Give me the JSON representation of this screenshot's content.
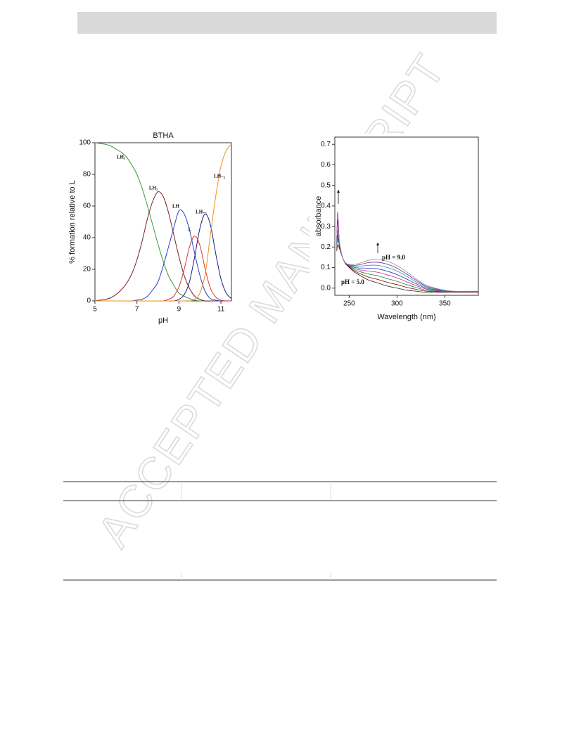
{
  "watermark": "ACCEPTED MANUSCRIPT",
  "chart_data": [
    {
      "type": "line",
      "title": "BTHA",
      "x_label": "pH",
      "y_label": "% formation relative to L",
      "x": [
        5,
        5.25,
        5.5,
        5.75,
        6,
        6.25,
        6.5,
        6.75,
        7,
        7.25,
        7.5,
        7.75,
        8,
        8.25,
        8.5,
        8.75,
        9,
        9.25,
        9.5,
        9.75,
        10,
        10.25,
        10.5,
        10.75,
        11,
        11.25,
        11.5
      ],
      "xlim": [
        5,
        11.5
      ],
      "xticks": [
        5,
        7,
        9,
        11
      ],
      "ylim": [
        0,
        100
      ],
      "yticks": [
        0,
        20,
        40,
        60,
        80,
        100
      ],
      "series": [
        {
          "name": "LH₃",
          "color": "#3a9a3a",
          "values": [
            100,
            99.5,
            99,
            98,
            96,
            94,
            91,
            86,
            80,
            71,
            60,
            48,
            36,
            25,
            16,
            10,
            5,
            3,
            1.5,
            0.5,
            0,
            0,
            0,
            0,
            0,
            0,
            0
          ]
        },
        {
          "name": "LH₂",
          "color": "#7a1f1f",
          "values": [
            0,
            0.5,
            1,
            2,
            4,
            7,
            11,
            17,
            26,
            38,
            52,
            63,
            69,
            66,
            56,
            42,
            28,
            16,
            8,
            3,
            1,
            0,
            0,
            0,
            0,
            0,
            0
          ]
        },
        {
          "name": "LH",
          "color": "#2a3fcf",
          "values": [
            0,
            0,
            0,
            0,
            0,
            0,
            0,
            0,
            0.5,
            1,
            3,
            7,
            12,
            22,
            34,
            46,
            57,
            55,
            45,
            30,
            16,
            6,
            1.5,
            0.5,
            0,
            0,
            0
          ]
        },
        {
          "name": "L",
          "color": "#e03030",
          "values": [
            0,
            0,
            0,
            0,
            0,
            0,
            0,
            0,
            0,
            0,
            0,
            0,
            0,
            0,
            1,
            3,
            9,
            20,
            34,
            41,
            35,
            20,
            8,
            2.5,
            0.5,
            0,
            0
          ]
        },
        {
          "name": "LH₋₁",
          "color": "#1a1a8a",
          "values": [
            0,
            0,
            0,
            0,
            0,
            0,
            0,
            0,
            0,
            0,
            0,
            0,
            0,
            0,
            0,
            0,
            1,
            4,
            12,
            28,
            46,
            55,
            48,
            30,
            14,
            5,
            1.5
          ]
        },
        {
          "name": "LH₋₂",
          "color": "#f0901a",
          "values": [
            0,
            0,
            0,
            0,
            0,
            0,
            0,
            0,
            0,
            0,
            0,
            0,
            0,
            0,
            0,
            0,
            0,
            0,
            0,
            1,
            5,
            17,
            42,
            66,
            85,
            95,
            99
          ]
        }
      ]
    },
    {
      "type": "line",
      "x_label": "Wavelength (nm)",
      "y_label": "absorbance",
      "annotations": [
        "pH = 9.0",
        "pH = 5.0"
      ],
      "x": [
        237,
        238,
        240,
        243,
        246,
        250,
        255,
        260,
        270,
        280,
        290,
        300,
        310,
        320,
        330,
        340,
        350,
        360,
        385
      ],
      "xlim": [
        235,
        385
      ],
      "xticks": [
        250,
        300,
        350
      ],
      "ylim": [
        -0.035,
        0.735
      ],
      "yticks": [
        {
          "value": 0,
          "label": "0.0"
        },
        {
          "value": 0.1,
          "label": "0.1"
        },
        {
          "value": 0.2,
          "label": "0.2"
        },
        {
          "value": 0.3,
          "label": "0.3"
        },
        {
          "value": 0.4,
          "label": "0.4"
        },
        {
          "value": 0.5,
          "label": "0.5"
        },
        {
          "value": 0.6,
          "label": "0.6"
        },
        {
          "value": 0.7,
          "label": "0.7"
        }
      ],
      "series": [
        {
          "color": "#222222",
          "values": [
            0.18,
            0.21,
            0.19,
            0.15,
            0.12,
            0.1,
            0.08,
            0.065,
            0.04,
            0.025,
            0.01,
            0.0,
            -0.01,
            -0.015,
            -0.02,
            -0.02,
            -0.02,
            -0.02,
            -0.02
          ]
        },
        {
          "color": "#8b0000",
          "values": [
            0.19,
            0.26,
            0.195,
            0.15,
            0.121,
            0.102,
            0.085,
            0.073,
            0.054,
            0.042,
            0.028,
            0.017,
            0.004,
            -0.006,
            -0.015,
            -0.017,
            -0.019,
            -0.019,
            -0.019
          ]
        },
        {
          "color": "#1a8a1a",
          "values": [
            0.2,
            0.24,
            0.199,
            0.15,
            0.122,
            0.105,
            0.091,
            0.082,
            0.069,
            0.06,
            0.046,
            0.033,
            0.017,
            0.003,
            -0.01,
            -0.014,
            -0.017,
            -0.018,
            -0.018
          ]
        },
        {
          "color": "#d11fa0",
          "values": [
            0.21,
            0.37,
            0.204,
            0.15,
            0.122,
            0.107,
            0.096,
            0.09,
            0.083,
            0.077,
            0.064,
            0.05,
            0.031,
            0.012,
            -0.004,
            -0.011,
            -0.016,
            -0.018,
            -0.018
          ]
        },
        {
          "color": "#1f3fbf",
          "values": [
            0.22,
            0.28,
            0.208,
            0.15,
            0.123,
            0.109,
            0.101,
            0.098,
            0.097,
            0.094,
            0.082,
            0.066,
            0.044,
            0.021,
            0.001,
            -0.008,
            -0.014,
            -0.017,
            -0.017
          ]
        },
        {
          "color": "#1a9a9a",
          "values": [
            0.23,
            0.23,
            0.213,
            0.15,
            0.124,
            0.111,
            0.106,
            0.106,
            0.111,
            0.111,
            0.1,
            0.083,
            0.058,
            0.03,
            0.006,
            -0.005,
            -0.013,
            -0.016,
            -0.016
          ]
        },
        {
          "color": "#7a1fa0",
          "values": [
            0.24,
            0.33,
            0.216,
            0.15,
            0.124,
            0.113,
            0.111,
            0.113,
            0.124,
            0.126,
            0.116,
            0.097,
            0.069,
            0.038,
            0.011,
            -0.002,
            -0.011,
            -0.016,
            -0.016
          ]
        },
        {
          "color": "#999999",
          "values": [
            0.25,
            0.3,
            0.22,
            0.15,
            0.125,
            0.115,
            0.115,
            0.12,
            0.135,
            0.14,
            0.13,
            0.11,
            0.08,
            0.045,
            0.015,
            0.0,
            -0.01,
            -0.015,
            -0.015
          ]
        }
      ]
    }
  ]
}
